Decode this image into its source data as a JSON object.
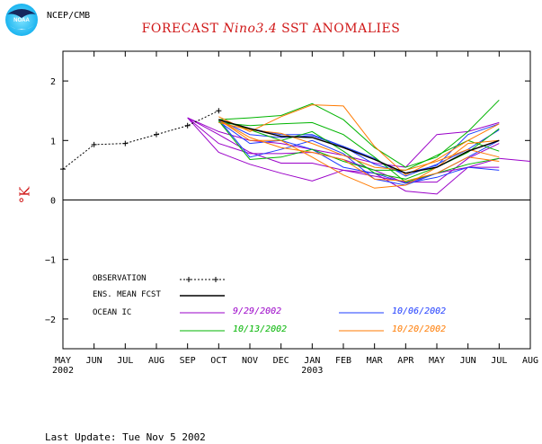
{
  "header": {
    "agency": "NCEP/CMB",
    "logo_text": "NOAA",
    "title_prefix": "FORECAST ",
    "title_italic": "Nino3.4",
    "title_suffix": " SST ANOMALIES"
  },
  "footer": "Last Update: Tue Nov 5 2002",
  "colors": {
    "title": "#d01818",
    "observation": "#000000",
    "mean": "#000000",
    "ic_0929": "#9a00c8",
    "ic_1006": "#1e3cff",
    "ic_1013": "#00b400",
    "ic_1020": "#ff7a00"
  },
  "chart_data": {
    "type": "line",
    "xlabel": "",
    "ylabel": "°K",
    "ylim": [
      -2.5,
      2.5
    ],
    "yticks": [
      -2,
      -1,
      0,
      1,
      2
    ],
    "x": [
      "MAY",
      "JUN",
      "JUL",
      "AUG",
      "SEP",
      "OCT",
      "NOV",
      "DEC",
      "JAN",
      "FEB",
      "MAR",
      "APR",
      "MAY",
      "JUN",
      "JUL",
      "AUG"
    ],
    "year_labels": [
      {
        "month_index": 0,
        "label": "2002"
      },
      {
        "month_index": 8,
        "label": "2003"
      }
    ],
    "observation": {
      "label": "OBSERVATION",
      "values": [
        0.52,
        0.93,
        0.95,
        1.1,
        1.25,
        1.5
      ]
    },
    "mean": {
      "label": "ENS. MEAN FCST",
      "start_index": 5,
      "values": [
        1.35,
        1.2,
        1.07,
        1.05,
        0.88,
        0.68,
        0.45,
        0.55,
        0.82,
        1.0
      ]
    },
    "legend_heading": "OCEAN IC",
    "legend_items": [
      "9/29/2002",
      "10/06/2002",
      "10/13/2002",
      "10/20/2002"
    ],
    "members": [
      {
        "group": "ic_0929",
        "start_index": 4,
        "values": [
          1.38,
          1.15,
          1.0,
          0.95,
          0.85,
          0.75,
          0.62,
          0.55,
          1.1,
          1.15,
          1.3
        ]
      },
      {
        "group": "ic_0929",
        "start_index": 4,
        "values": [
          1.38,
          0.8,
          0.6,
          0.45,
          0.32,
          0.5,
          0.45,
          0.15,
          0.1,
          0.55,
          0.7,
          0.65
        ]
      },
      {
        "group": "ic_0929",
        "start_index": 4,
        "values": [
          1.38,
          0.95,
          0.78,
          0.78,
          0.8,
          0.68,
          0.5,
          0.28,
          0.45,
          0.55,
          0.55
        ]
      },
      {
        "group": "ic_0929",
        "start_index": 4,
        "values": [
          1.38,
          1.1,
          0.8,
          0.62,
          0.62,
          0.5,
          0.4,
          0.3,
          0.3,
          0.7,
          0.95
        ]
      },
      {
        "group": "ic_1006",
        "start_index": 5,
        "values": [
          1.35,
          1.2,
          1.1,
          1.1,
          0.9,
          0.6,
          0.45,
          0.58,
          1.1,
          1.28
        ]
      },
      {
        "group": "ic_1006",
        "start_index": 5,
        "values": [
          1.35,
          0.72,
          0.85,
          1.0,
          0.78,
          0.35,
          0.25,
          0.45,
          0.72,
          1.0
        ]
      },
      {
        "group": "ic_1006",
        "start_index": 5,
        "values": [
          1.32,
          0.95,
          1.0,
          0.85,
          0.55,
          0.45,
          0.28,
          0.38,
          0.55,
          0.5
        ]
      },
      {
        "group": "ic_1006",
        "start_index": 5,
        "values": [
          1.35,
          1.1,
          1.05,
          1.08,
          0.9,
          0.7,
          0.4,
          0.6,
          0.85,
          1.18
        ]
      },
      {
        "group": "ic_1013",
        "start_index": 5,
        "values": [
          1.35,
          1.38,
          1.42,
          1.62,
          1.35,
          0.88,
          0.55,
          0.72,
          1.15,
          1.68
        ]
      },
      {
        "group": "ic_1013",
        "start_index": 5,
        "values": [
          1.3,
          1.25,
          1.28,
          1.3,
          1.1,
          0.72,
          0.3,
          0.45,
          0.6,
          0.7
        ]
      },
      {
        "group": "ic_1013",
        "start_index": 5,
        "values": [
          1.35,
          1.18,
          1.0,
          1.15,
          0.82,
          0.45,
          0.35,
          0.55,
          0.8,
          1.2
        ]
      },
      {
        "group": "ic_1013",
        "start_index": 5,
        "values": [
          1.33,
          0.68,
          0.72,
          0.85,
          0.65,
          0.5,
          0.5,
          0.75,
          1.0,
          0.82
        ]
      },
      {
        "group": "ic_1020",
        "start_index": 5,
        "values": [
          1.4,
          1.15,
          1.4,
          1.6,
          1.58,
          0.9,
          0.42,
          0.68,
          1.0,
          1.28
        ]
      },
      {
        "group": "ic_1020",
        "start_index": 5,
        "values": [
          1.35,
          1.0,
          1.0,
          0.72,
          0.42,
          0.2,
          0.25,
          0.55,
          0.95,
          1.0
        ]
      },
      {
        "group": "ic_1020",
        "start_index": 5,
        "values": [
          1.3,
          1.18,
          1.12,
          0.95,
          0.75,
          0.55,
          0.5,
          0.65,
          0.85,
          0.72
        ]
      },
      {
        "group": "ic_1020",
        "start_index": 5,
        "values": [
          1.35,
          1.05,
          0.88,
          0.8,
          0.68,
          0.35,
          0.32,
          0.45,
          0.72,
          0.65
        ]
      }
    ]
  }
}
